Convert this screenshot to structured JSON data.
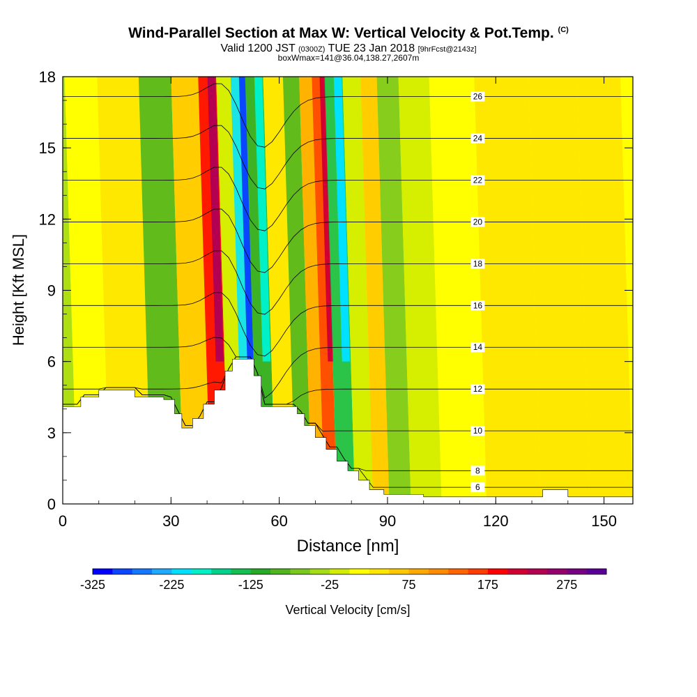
{
  "title": {
    "main": "Wind-Parallel Section at Max W: Vertical Velocity & Pot.Temp.",
    "copyright": "(C)",
    "valid_prefix": "Valid 1200 JST",
    "valid_utc": "(0300Z)",
    "valid_date": "TUE 23 Jan 2018",
    "forecast": "[9hrFcst@2143z]",
    "box": "boxWmax=141@36.04,138.27,2607m"
  },
  "chart_data": {
    "type": "heatmap",
    "xlabel": "Distance [nm]",
    "ylabel": "Height [Kft MSL]",
    "xlim": [
      0,
      158
    ],
    "ylim": [
      0,
      18
    ],
    "x_ticks": [
      0,
      30,
      60,
      90,
      120,
      150
    ],
    "y_ticks": [
      0,
      3,
      6,
      9,
      12,
      15,
      18
    ],
    "colorbar": {
      "label": "Vertical Velocity [cm/s]",
      "tick_labels": [
        -325,
        -225,
        -125,
        -25,
        75,
        175,
        275
      ],
      "levels": [
        -325,
        -300,
        -275,
        -250,
        -225,
        -200,
        -175,
        -150,
        -125,
        -100,
        -75,
        -50,
        -25,
        0,
        25,
        50,
        75,
        100,
        125,
        150,
        175,
        200,
        225,
        250,
        275,
        300
      ],
      "colors": [
        "#0000ff",
        "#0a46ff",
        "#1478ff",
        "#1eaaff",
        "#00e1ff",
        "#00f0c8",
        "#00d28c",
        "#14be50",
        "#28aa28",
        "#50b41e",
        "#7ac81e",
        "#a5dc14",
        "#d2ed00",
        "#ffff00",
        "#ffe600",
        "#ffc800",
        "#ffaa00",
        "#ff8c00",
        "#ff6400",
        "#ff3c00",
        "#ff0000",
        "#d20032",
        "#b40050",
        "#96006e",
        "#780082",
        "#5a0096"
      ]
    },
    "terrain_kft": [
      [
        0,
        4.1
      ],
      [
        5,
        4.5
      ],
      [
        10,
        4.8
      ],
      [
        20,
        4.5
      ],
      [
        28,
        4.4
      ],
      [
        31,
        3.8
      ],
      [
        33,
        3.2
      ],
      [
        36,
        3.6
      ],
      [
        39,
        4.2
      ],
      [
        42,
        4.8
      ],
      [
        45,
        5.6
      ],
      [
        47,
        6.1
      ],
      [
        52,
        6.1
      ],
      [
        53,
        5.4
      ],
      [
        55,
        4.1
      ],
      [
        63,
        4.1
      ],
      [
        65,
        3.8
      ],
      [
        67,
        3.3
      ],
      [
        70,
        2.8
      ],
      [
        73,
        2.3
      ],
      [
        76,
        1.8
      ],
      [
        79,
        1.4
      ],
      [
        82,
        1.0
      ],
      [
        85,
        0.6
      ],
      [
        89,
        0.4
      ],
      [
        100,
        0.3
      ],
      [
        120,
        0.3
      ],
      [
        132,
        0.3
      ],
      [
        133,
        0.6
      ],
      [
        138,
        0.6
      ],
      [
        140,
        0.3
      ],
      [
        158,
        0.3
      ]
    ],
    "vertical_velocity_cm_s": [
      {
        "x": 2,
        "value": -50
      },
      {
        "x": 6,
        "value": 15
      },
      {
        "x": 20,
        "value": 30
      },
      {
        "x": 29,
        "value": -80
      },
      {
        "x": 38,
        "value": 60
      },
      {
        "x": 44,
        "value": 175
      },
      {
        "x": 48,
        "value": -20
      },
      {
        "x": 52,
        "value": -225
      },
      {
        "x": 56,
        "value": -110
      },
      {
        "x": 62,
        "value": 25
      },
      {
        "x": 67,
        "value": -95
      },
      {
        "x": 71,
        "value": 80
      },
      {
        "x": 74,
        "value": 160
      },
      {
        "x": 78,
        "value": -130
      },
      {
        "x": 84,
        "value": -15
      },
      {
        "x": 88,
        "value": 70
      },
      {
        "x": 93,
        "value": -60
      },
      {
        "x": 100,
        "value": -25
      },
      {
        "x": 110,
        "value": 20
      },
      {
        "x": 125,
        "value": 35
      },
      {
        "x": 140,
        "value": 25
      },
      {
        "x": 152,
        "value": 45
      }
    ],
    "theta_contours": [
      {
        "value": 6,
        "label": "6"
      },
      {
        "value": 8,
        "label": "8"
      },
      {
        "value": 10,
        "label": "10"
      },
      {
        "value": 12,
        "label": "12"
      },
      {
        "value": 14,
        "label": "14"
      },
      {
        "value": 16,
        "label": "16"
      },
      {
        "value": 18,
        "label": "18"
      },
      {
        "value": 20,
        "label": "20"
      },
      {
        "value": 22,
        "label": "22"
      },
      {
        "value": 24,
        "label": "24"
      },
      {
        "value": 26,
        "label": "26"
      }
    ]
  }
}
